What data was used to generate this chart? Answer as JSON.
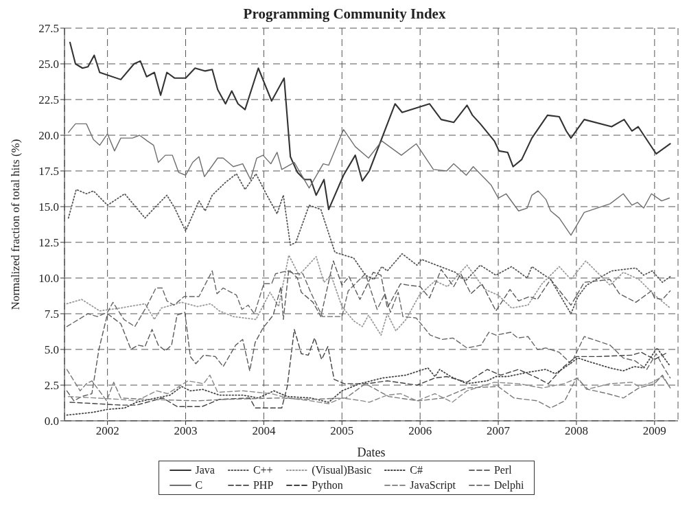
{
  "chart_data": {
    "type": "line",
    "title": "Programming Community Index",
    "xlabel": "Dates",
    "ylabel": "Normalized fraction of total hits (%)",
    "xlim": [
      2001.45,
      2009.3
    ],
    "xticks": [
      2002,
      2003,
      2004,
      2005,
      2006,
      2007,
      2008,
      2009
    ],
    "ylim": [
      0,
      27.5
    ],
    "yticks": [
      {
        "value": 0,
        "label": "0.0"
      },
      {
        "value": 2.5,
        "label": "2.5"
      },
      {
        "value": 5,
        "label": "5.0"
      },
      {
        "value": 7.5,
        "label": "7.5"
      },
      {
        "value": 10,
        "label": "10.0"
      },
      {
        "value": 12.5,
        "label": "12.5"
      },
      {
        "value": 15,
        "label": "15.0"
      },
      {
        "value": 17.5,
        "label": "17.5"
      },
      {
        "value": 20,
        "label": "20.0"
      },
      {
        "value": 22.5,
        "label": "22.5"
      },
      {
        "value": 25,
        "label": "25.0"
      },
      {
        "value": 27.5,
        "label": "27.5"
      }
    ],
    "grid": true,
    "legend": "bottom",
    "marker": "none",
    "series": [
      {
        "name": "Java",
        "color": "#333333",
        "line_style": "solid",
        "x": [
          2001.52,
          2001.59,
          2001.68,
          2001.75,
          2001.83,
          2001.9,
          2002.17,
          2002.34,
          2002.42,
          2002.5,
          2002.6,
          2002.68,
          2002.76,
          2002.86,
          2003.0,
          2003.12,
          2003.25,
          2003.34,
          2003.41,
          2003.51,
          2003.59,
          2003.67,
          2003.76,
          2003.93,
          2004.1,
          2004.26,
          2004.34,
          2004.43,
          2004.52,
          2004.6,
          2004.67,
          2004.77,
          2004.83,
          2005.02,
          2005.17,
          2005.26,
          2005.35,
          2005.68,
          2005.77,
          2006.12,
          2006.27,
          2006.43,
          2006.6,
          2006.67,
          2006.77,
          2006.95,
          2007.01,
          2007.12,
          2007.19,
          2007.3,
          2007.43,
          2007.63,
          2007.78,
          2007.87,
          2007.93,
          2008.1,
          2008.45,
          2008.61,
          2008.71,
          2008.79,
          2009.02,
          2009.2
        ],
        "values": [
          26.5,
          25.0,
          24.7,
          24.8,
          25.6,
          24.4,
          23.9,
          25.0,
          25.2,
          24.1,
          24.4,
          22.8,
          24.4,
          24.0,
          24.0,
          24.7,
          24.5,
          24.6,
          23.2,
          22.2,
          23.1,
          22.2,
          21.8,
          24.7,
          22.4,
          24.0,
          18.5,
          17.4,
          16.9,
          16.9,
          15.8,
          16.9,
          14.8,
          17.2,
          18.6,
          16.8,
          17.5,
          22.2,
          21.6,
          22.2,
          21.1,
          20.9,
          22.1,
          21.4,
          20.8,
          19.6,
          18.9,
          18.8,
          17.8,
          18.3,
          19.8,
          21.4,
          21.3,
          20.3,
          19.8,
          21.1,
          20.6,
          21.1,
          20.3,
          20.6,
          18.7,
          19.4
        ]
      },
      {
        "name": "C++",
        "color": "#555555",
        "line_style": "dotted",
        "x": [
          2001.5,
          2001.6,
          2001.73,
          2001.82,
          2002.0,
          2002.22,
          2002.48,
          2002.6,
          2002.76,
          2002.86,
          2003.0,
          2003.17,
          2003.25,
          2003.34,
          2003.51,
          2003.65,
          2003.76,
          2003.9,
          2004.03,
          2004.17,
          2004.25,
          2004.34,
          2004.41,
          2004.58,
          2004.73,
          2004.91,
          2005.15,
          2005.3,
          2005.41,
          2005.51,
          2005.58,
          2005.77,
          2005.96,
          2006.02,
          2006.45,
          2006.58,
          2006.77,
          2006.97,
          2007.17,
          2007.37,
          2007.43,
          2007.67,
          2007.93,
          2008.02,
          2008.13,
          2008.45,
          2008.76,
          2008.86,
          2008.97,
          2009.1,
          2009.2
        ],
        "values": [
          14.2,
          16.2,
          15.9,
          16.1,
          15.1,
          15.9,
          14.2,
          14.9,
          15.8,
          14.9,
          13.3,
          15.4,
          14.7,
          15.8,
          16.7,
          17.3,
          16.2,
          17.3,
          15.9,
          14.5,
          15.8,
          12.3,
          12.5,
          15.1,
          14.8,
          11.8,
          11.4,
          10.2,
          9.9,
          10.8,
          10.5,
          11.7,
          10.9,
          11.3,
          10.4,
          9.8,
          10.9,
          10.2,
          10.8,
          10.0,
          10.8,
          9.9,
          7.5,
          8.7,
          9.5,
          10.5,
          10.7,
          10.2,
          10.5,
          9.7,
          10.1
        ]
      },
      {
        "name": "(Visual)Basic",
        "color": "#9a9a9a",
        "line_style": "dotted",
        "x": [
          2001.48,
          2001.67,
          2001.9,
          2002.17,
          2002.48,
          2002.6,
          2002.69,
          2002.95,
          2003.15,
          2003.32,
          2003.43,
          2003.61,
          2003.9,
          2004.08,
          2004.19,
          2004.32,
          2004.45,
          2004.67,
          2004.77,
          2004.86,
          2005.0,
          2005.15,
          2005.26,
          2005.34,
          2005.5,
          2005.58,
          2005.69,
          2005.82,
          2005.99,
          2006.19,
          2006.35,
          2006.6,
          2006.83,
          2007.0,
          2007.17,
          2007.38,
          2007.56,
          2007.78,
          2007.93,
          2008.12,
          2008.43,
          2008.6,
          2008.8,
          2009.0,
          2009.2
        ],
        "values": [
          8.2,
          8.5,
          7.7,
          7.9,
          8.2,
          7.1,
          7.9,
          8.3,
          8.0,
          8.2,
          7.7,
          7.3,
          7.1,
          9.0,
          8.0,
          11.6,
          10.2,
          11.5,
          9.7,
          10.2,
          8.0,
          7.0,
          6.6,
          7.4,
          6.0,
          7.5,
          6.3,
          7.1,
          8.8,
          9.8,
          9.4,
          10.9,
          9.2,
          8.8,
          7.9,
          8.1,
          9.6,
          10.8,
          9.9,
          11.2,
          9.5,
          10.4,
          9.9,
          8.8,
          7.9
        ]
      },
      {
        "name": "C#",
        "color": "#444444",
        "line_style": "dotted",
        "x": [
          2001.48,
          2001.82,
          2002.0,
          2002.22,
          2002.37,
          2002.63,
          2002.8,
          2002.95,
          2003.06,
          2003.22,
          2003.43,
          2003.73,
          2003.93,
          2004.13,
          2004.3,
          2004.6,
          2004.83,
          2005.0,
          2005.23,
          2005.52,
          2005.82,
          2006.1,
          2006.19,
          2006.25,
          2006.39,
          2006.6,
          2006.86,
          2006.97,
          2007.12,
          2007.38,
          2007.61,
          2007.73,
          2007.84,
          2008.02,
          2008.13,
          2008.43,
          2008.6,
          2008.74,
          2008.86,
          2009.03,
          2009.19
        ],
        "values": [
          0.4,
          0.6,
          0.8,
          0.9,
          1.3,
          1.6,
          1.8,
          2.4,
          2.1,
          2.2,
          1.8,
          1.8,
          1.6,
          2.1,
          1.7,
          1.6,
          1.3,
          2.1,
          2.6,
          3.0,
          3.2,
          3.7,
          3.1,
          3.6,
          3.1,
          2.6,
          2.8,
          3.1,
          3.1,
          3.4,
          3.6,
          3.3,
          3.7,
          4.4,
          4.2,
          3.7,
          3.5,
          3.8,
          3.7,
          5.1,
          3.9
        ]
      },
      {
        "name": "Perl",
        "color": "#666666",
        "line_style": "dashed",
        "x": [
          2001.48,
          2001.75,
          2001.87,
          2002.0,
          2002.07,
          2002.21,
          2002.35,
          2002.5,
          2002.62,
          2002.7,
          2002.76,
          2002.85,
          2002.98,
          2003.1,
          2003.17,
          2003.34,
          2003.4,
          2003.48,
          2003.65,
          2003.72,
          2003.8,
          2003.88,
          2004.0,
          2004.1,
          2004.15,
          2004.3,
          2004.4,
          2004.5,
          2004.6,
          2004.75,
          2004.85,
          2005.0,
          2005.08,
          2005.3,
          2005.45,
          2005.55,
          2005.62,
          2005.72,
          2005.78,
          2005.95,
          2006.13,
          2006.28,
          2006.42,
          2006.6,
          2006.78,
          2006.88,
          2006.97,
          2007.16,
          2007.25,
          2007.38,
          2007.5,
          2007.61,
          2007.78,
          2007.93,
          2008.02,
          2008.1,
          2008.43,
          2008.6,
          2008.75,
          2008.9,
          2009.02,
          2009.1,
          2009.2
        ],
        "values": [
          6.6,
          7.5,
          7.3,
          7.6,
          8.3,
          7.1,
          6.6,
          8.0,
          9.3,
          9.3,
          8.4,
          8.1,
          8.7,
          8.7,
          8.7,
          10.5,
          8.9,
          9.3,
          8.8,
          7.8,
          8.1,
          7.5,
          9.6,
          9.6,
          10.3,
          10.5,
          10.3,
          10.3,
          9.0,
          7.3,
          7.3,
          7.3,
          9.1,
          10.3,
          7.8,
          8.9,
          7.6,
          9.0,
          7.3,
          7.2,
          6.0,
          5.7,
          5.8,
          5.1,
          5.3,
          6.2,
          6.0,
          6.2,
          5.8,
          5.9,
          5.0,
          5.1,
          4.8,
          4.0,
          5.0,
          5.9,
          5.3,
          4.4,
          4.2,
          3.6,
          4.7,
          3.9,
          3.0
        ]
      },
      {
        "name": "C",
        "color": "#6e6e6e",
        "line_style": "solid",
        "x": [
          2001.5,
          2001.59,
          2001.73,
          2001.82,
          2001.9,
          2002.0,
          2002.09,
          2002.17,
          2002.32,
          2002.41,
          2002.51,
          2002.59,
          2002.65,
          2002.74,
          2002.83,
          2002.91,
          2003.0,
          2003.09,
          2003.17,
          2003.24,
          2003.41,
          2003.48,
          2003.61,
          2003.73,
          2003.83,
          2003.91,
          2003.99,
          2004.09,
          2004.17,
          2004.23,
          2004.39,
          2004.58,
          2004.76,
          2004.83,
          2005.02,
          2005.17,
          2005.34,
          2005.51,
          2005.76,
          2005.95,
          2006.17,
          2006.34,
          2006.43,
          2006.59,
          2006.68,
          2006.91,
          2007.0,
          2007.1,
          2007.26,
          2007.37,
          2007.43,
          2007.51,
          2007.61,
          2007.67,
          2007.78,
          2007.93,
          2008.1,
          2008.43,
          2008.6,
          2008.71,
          2008.78,
          2008.86,
          2008.96,
          2009.09,
          2009.19
        ],
        "values": [
          20.2,
          20.8,
          20.8,
          19.7,
          19.3,
          20.1,
          18.9,
          19.8,
          19.8,
          20.0,
          19.6,
          19.3,
          18.1,
          18.6,
          18.6,
          17.4,
          17.2,
          18.1,
          18.5,
          17.1,
          18.4,
          18.4,
          17.8,
          18.0,
          16.9,
          18.4,
          18.6,
          18.0,
          18.8,
          17.6,
          18.1,
          16.3,
          18.0,
          17.9,
          20.4,
          19.2,
          18.4,
          19.6,
          18.6,
          19.4,
          17.6,
          17.5,
          18.0,
          17.2,
          17.8,
          16.5,
          15.6,
          15.9,
          14.7,
          14.9,
          15.8,
          16.1,
          15.5,
          14.7,
          14.2,
          13.0,
          14.6,
          15.2,
          15.9,
          15.1,
          15.3,
          14.9,
          15.9,
          15.4,
          15.6
        ]
      },
      {
        "name": "PHP",
        "color": "#5a5a5a",
        "line_style": "dashed",
        "x": [
          2001.48,
          2001.57,
          2001.67,
          2001.8,
          2001.89,
          2002.0,
          2002.17,
          2002.3,
          2002.39,
          2002.48,
          2002.57,
          2002.65,
          2002.74,
          2002.82,
          2002.89,
          2002.99,
          2003.06,
          2003.13,
          2003.23,
          2003.38,
          2003.48,
          2003.64,
          2003.73,
          2003.82,
          2003.89,
          2003.99,
          2004.12,
          2004.22,
          2004.25,
          2004.32,
          2004.43,
          2004.48,
          2004.63,
          2004.73,
          2004.89,
          2005.0,
          2005.09,
          2005.23,
          2005.4,
          2005.5,
          2005.58,
          2005.75,
          2005.85,
          2006.0,
          2006.12,
          2006.27,
          2006.43,
          2006.52,
          2006.65,
          2006.79,
          2006.97,
          2007.15,
          2007.26,
          2007.4,
          2007.5,
          2007.67,
          2007.93,
          2008.1,
          2008.43,
          2008.55,
          2008.76,
          2008.96,
          2009.0,
          2009.1,
          2009.2
        ],
        "values": [
          2.1,
          1.4,
          1.7,
          1.9,
          5.0,
          7.5,
          6.8,
          5.0,
          5.3,
          5.2,
          6.4,
          5.3,
          4.9,
          5.3,
          7.4,
          7.6,
          4.5,
          4.0,
          4.6,
          4.5,
          3.8,
          5.3,
          5.7,
          3.5,
          5.5,
          6.5,
          7.4,
          9.4,
          7.1,
          10.6,
          10.0,
          9.0,
          8.3,
          7.3,
          11.2,
          9.5,
          10.1,
          8.5,
          10.4,
          10.2,
          7.9,
          9.6,
          9.5,
          9.4,
          8.6,
          10.6,
          9.4,
          10.3,
          8.9,
          9.6,
          7.7,
          9.2,
          8.4,
          8.7,
          8.5,
          9.9,
          8.1,
          9.7,
          9.9,
          8.9,
          8.3,
          9.1,
          8.6,
          8.5,
          9.1
        ]
      },
      {
        "name": "Python",
        "color": "#404040",
        "line_style": "dashed",
        "x": [
          2001.52,
          2001.85,
          2002.17,
          2002.37,
          2002.71,
          2002.89,
          2003.21,
          2003.43,
          2003.82,
          2003.89,
          2004.23,
          2004.3,
          2004.39,
          2004.48,
          2004.57,
          2004.65,
          2004.74,
          2004.82,
          2004.9,
          2005.03,
          2005.23,
          2005.32,
          2005.58,
          2005.96,
          2006.19,
          2006.34,
          2006.6,
          2006.86,
          2007.03,
          2007.26,
          2007.5,
          2007.64,
          2007.84,
          2008.0,
          2008.28,
          2008.71,
          2008.83,
          2009.0,
          2009.17
        ],
        "values": [
          1.3,
          1.2,
          1.1,
          1.1,
          1.6,
          1.0,
          1.0,
          1.5,
          1.6,
          0.9,
          0.9,
          2.4,
          6.4,
          4.7,
          4.6,
          5.8,
          4.3,
          5.2,
          2.9,
          2.6,
          2.6,
          2.6,
          2.8,
          2.5,
          3.0,
          3.1,
          2.7,
          3.6,
          3.2,
          3.6,
          3.0,
          2.6,
          3.8,
          4.5,
          4.5,
          4.6,
          4.8,
          4.3,
          4.8
        ]
      },
      {
        "name": "JavaScript",
        "color": "#8a8a8a",
        "line_style": "dashed",
        "x": [
          2001.5,
          2001.85,
          2002.17,
          2002.37,
          2002.63,
          2002.77,
          2003.03,
          2003.23,
          2003.31,
          2003.41,
          2003.73,
          2004.1,
          2004.3,
          2004.6,
          2004.83,
          2005.0,
          2005.26,
          2005.35,
          2005.58,
          2005.75,
          2005.96,
          2006.19,
          2006.41,
          2006.6,
          2006.95,
          2007.26,
          2007.56,
          2007.84,
          2008.02,
          2008.13,
          2008.43,
          2008.71,
          2008.8,
          2008.97,
          2009.1,
          2009.19
        ],
        "values": [
          1.7,
          1.6,
          1.5,
          1.4,
          2.1,
          1.9,
          2.8,
          2.6,
          3.2,
          2.0,
          2.1,
          1.9,
          1.6,
          1.4,
          1.2,
          1.6,
          1.4,
          1.3,
          1.8,
          1.9,
          1.4,
          1.9,
          1.3,
          2.1,
          2.7,
          2.6,
          2.3,
          2.6,
          3.0,
          2.2,
          2.6,
          2.7,
          2.4,
          2.7,
          3.1,
          2.4
        ]
      },
      {
        "name": "Delphi",
        "color": "#777777",
        "line_style": "dashed",
        "x": [
          2001.48,
          2001.65,
          2001.73,
          2001.8,
          2001.99,
          2002.08,
          2002.17,
          2002.5,
          2003.15,
          2003.5,
          2004.2,
          2004.6,
          2005.05,
          2005.3,
          2005.6,
          2005.98,
          2006.3,
          2006.6,
          2007.0,
          2007.2,
          2007.5,
          2007.67,
          2007.85,
          2008.0,
          2008.15,
          2008.4,
          2008.6,
          2008.8,
          2009.0,
          2009.1,
          2009.2
        ],
        "values": [
          3.6,
          2.1,
          2.6,
          2.8,
          1.4,
          2.7,
          1.6,
          1.5,
          1.4,
          1.5,
          1.6,
          1.5,
          1.6,
          2.6,
          1.7,
          1.4,
          1.6,
          2.3,
          2.4,
          1.6,
          1.4,
          0.9,
          1.4,
          3.0,
          2.2,
          1.9,
          1.6,
          2.3,
          2.6,
          3.2,
          2.3
        ]
      }
    ]
  }
}
